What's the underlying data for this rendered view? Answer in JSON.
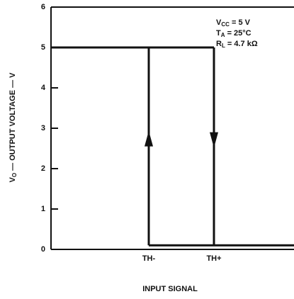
{
  "chart_data": {
    "type": "hysteresis",
    "ylabel": {
      "symbol": "V",
      "sub": "O",
      "rest": " — OUTPUT VOLTAGE — V"
    },
    "xlabel": "INPUT SIGNAL",
    "categories": [
      "TH-",
      "TH+"
    ],
    "output_high": 5,
    "output_low": 0.1,
    "ylim": [
      0,
      6
    ],
    "yticks": [
      0,
      1,
      2,
      3,
      4,
      5,
      6
    ],
    "color": "#111111",
    "annotations": [
      {
        "symbol": "V",
        "sub": "CC",
        "rest": " = 5 V"
      },
      {
        "symbol": "T",
        "sub": "A",
        "rest": " = 25°C"
      },
      {
        "symbol": "R",
        "sub": "L",
        "rest": " = 4.7 kΩ"
      }
    ]
  }
}
